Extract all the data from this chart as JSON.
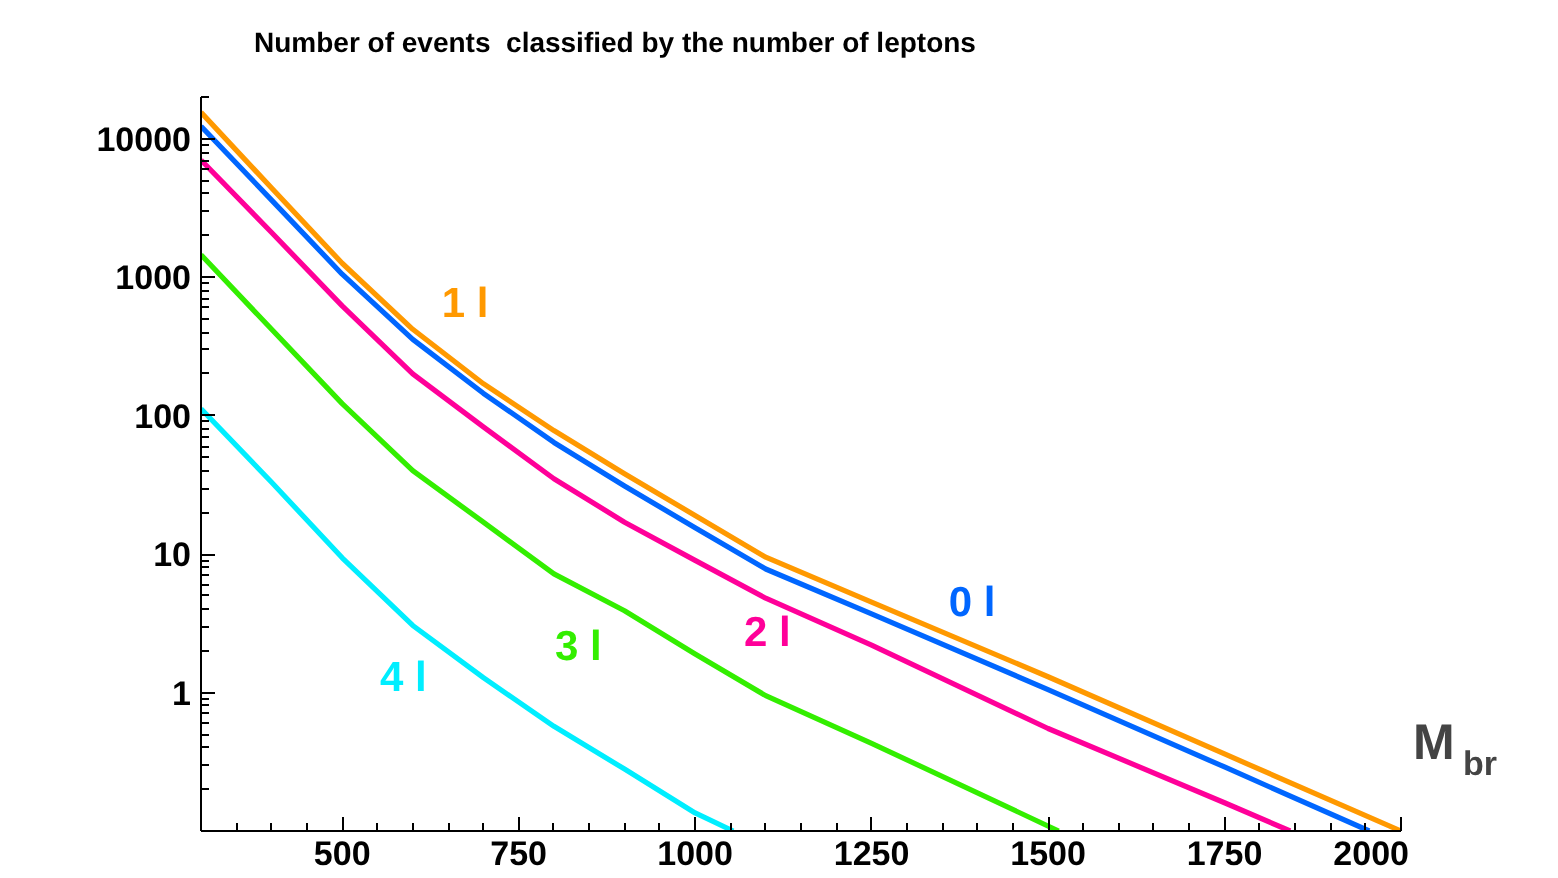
{
  "chart_data": {
    "type": "line",
    "title": "Number of events  classified by the number of leptons",
    "xlabel": "M$_{br}$",
    "log": "y",
    "grid": false,
    "legend": false,
    "marker": "none",
    "line_style": "solid",
    "xlim": [
      300,
      2000
    ],
    "ylim": [
      0.1,
      20000
    ],
    "xticks": [
      500,
      750,
      1000,
      1250,
      1500,
      1750,
      2000
    ],
    "yticks": [
      {
        "value": 0.1,
        "label": null
      },
      1,
      10,
      100,
      1000,
      10000
    ],
    "series": [
      {
        "name": "0 l",
        "color": "#0066ff",
        "x": [
          300,
          400,
          500,
          600,
          700,
          800,
          900,
          1000,
          1100,
          1250,
          1500,
          1750,
          1955
        ],
        "values": [
          12300,
          3600,
          1050,
          355,
          145,
          64,
          31,
          15.5,
          7.8,
          3.7,
          1.05,
          0.29,
          0.1
        ]
      },
      {
        "name": "1 l",
        "color": "#ff9900",
        "x": [
          300,
          400,
          500,
          600,
          700,
          800,
          900,
          1000,
          1100,
          1250,
          1500,
          1750,
          2000
        ],
        "values": [
          15500,
          4400,
          1260,
          420,
          170,
          78,
          38,
          19,
          9.5,
          4.5,
          1.3,
          0.36,
          0.1
        ]
      },
      {
        "name": "2 l",
        "color": "#ff0099",
        "x": [
          300,
          400,
          500,
          600,
          700,
          800,
          900,
          1000,
          1100,
          1250,
          1500,
          1750,
          1843
        ],
        "values": [
          7000,
          2100,
          620,
          200,
          83,
          35,
          17,
          9,
          4.8,
          2.2,
          0.55,
          0.16,
          0.1
        ]
      },
      {
        "name": "3 l",
        "color": "#33ee00",
        "x": [
          300,
          400,
          500,
          600,
          700,
          800,
          900,
          1000,
          1100,
          1250,
          1515
        ],
        "values": [
          1450,
          420,
          122,
          40,
          17,
          7.2,
          3.9,
          1.9,
          0.95,
          0.43,
          0.1
        ]
      },
      {
        "name": "4 l",
        "color": "#00eeff",
        "x": [
          300,
          400,
          500,
          600,
          700,
          800,
          900,
          1000,
          1054
        ],
        "values": [
          112,
          33,
          9.4,
          3.05,
          1.28,
          0.57,
          0.28,
          0.135,
          0.1
        ]
      }
    ]
  }
}
